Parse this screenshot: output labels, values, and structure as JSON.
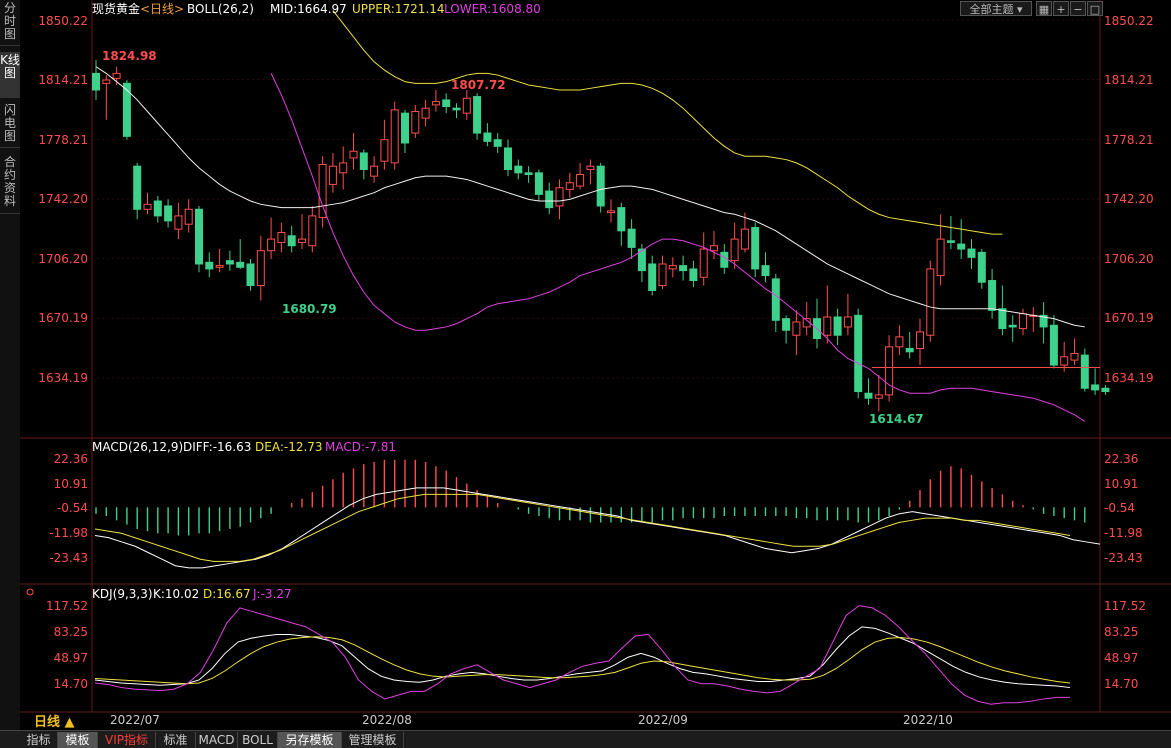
{
  "sidebar": {
    "tabs": [
      {
        "label": "分时图",
        "active": false
      },
      {
        "label": "K线图",
        "active": true
      },
      {
        "label": "闪电图",
        "active": false
      },
      {
        "label": "合约资料",
        "active": false
      }
    ]
  },
  "header": {
    "title": "现货黄金",
    "period": "<日线>",
    "boll": "BOLL(26,2)",
    "mid": "MID:1664.97",
    "upper": "UPPER:1721.14",
    "lower": "LOWER:1608.80",
    "theme_select": "全部主题",
    "icons": [
      "grid-icon",
      "zoom-in-icon",
      "zoom-out-icon",
      "settings-icon"
    ]
  },
  "colors": {
    "up": "#ff4d4d",
    "down": "#3ed18c",
    "upper": "#f0e040",
    "lower": "#e040e0",
    "mid": "#f0f0f0",
    "cross": "#ff4d4d"
  },
  "main_axis": {
    "ticks": [
      "1850.22",
      "1814.21",
      "1778.21",
      "1742.20",
      "1706.20",
      "1670.19",
      "1634.19"
    ],
    "marker_price": 1640.5
  },
  "annotations": {
    "high_1": "1824.98",
    "high_2": "1807.72",
    "low_1": "1680.79",
    "low_2": "1614.67"
  },
  "macd": {
    "title": "MACD(26,12,9)",
    "diff": "DIFF:-16.63",
    "dea": "DEA:-12.73",
    "macd": "MACD:-7.81",
    "ticks": [
      "22.36",
      "10.91",
      "-0.54",
      "-11.98",
      "-23.43"
    ]
  },
  "kdj": {
    "title": "KDJ(9,3,3)",
    "k": "K:10.02",
    "d": "D:16.67",
    "j": "J:-3.27",
    "ticks": [
      "117.52",
      "83.25",
      "48.97",
      "14.70"
    ]
  },
  "x_axis": {
    "labels": [
      "2022/07",
      "2022/08",
      "2022/09",
      "2022/10"
    ],
    "period_button": "日线 ▲"
  },
  "bottom_tabs": [
    {
      "label": "指标",
      "active": false,
      "vip": false
    },
    {
      "label": "模板",
      "active": true,
      "vip": false
    },
    {
      "label": "VIP指标",
      "active": false,
      "vip": true
    },
    {
      "label": "标准",
      "active": false,
      "vip": false
    },
    {
      "label": "MACD",
      "active": false,
      "vip": false
    },
    {
      "label": "BOLL",
      "active": false,
      "vip": false
    },
    {
      "label": "另存模板",
      "active": true,
      "vip": false
    },
    {
      "label": "管理模板",
      "active": false,
      "vip": false
    }
  ],
  "chart_data": {
    "type": "candlestick",
    "series_candles": [
      [
        1818,
        1808,
        1826,
        1802
      ],
      [
        1812,
        1814,
        1817,
        1790
      ],
      [
        1815,
        1818,
        1822,
        1811
      ],
      [
        1812,
        1780,
        1814,
        1778
      ],
      [
        1762,
        1736,
        1764,
        1730
      ],
      [
        1736,
        1739,
        1746,
        1733
      ],
      [
        1741,
        1732,
        1744,
        1728
      ],
      [
        1738,
        1729,
        1742,
        1725
      ],
      [
        1724,
        1732,
        1740,
        1718
      ],
      [
        1727,
        1736,
        1742,
        1722
      ],
      [
        1736,
        1703,
        1738,
        1698
      ],
      [
        1704,
        1700,
        1710,
        1695
      ],
      [
        1701,
        1702,
        1712,
        1698
      ],
      [
        1705,
        1703,
        1711,
        1699
      ],
      [
        1704,
        1701,
        1718,
        1700
      ],
      [
        1703,
        1690,
        1706,
        1687
      ],
      [
        1690,
        1711,
        1720,
        1681
      ],
      [
        1711,
        1718,
        1731,
        1706
      ],
      [
        1716,
        1722,
        1728,
        1710
      ],
      [
        1720,
        1714,
        1726,
        1710
      ],
      [
        1716,
        1718,
        1733,
        1712
      ],
      [
        1714,
        1732,
        1738,
        1710
      ],
      [
        1731,
        1763,
        1768,
        1725
      ],
      [
        1751,
        1762,
        1770,
        1746
      ],
      [
        1758,
        1764,
        1774,
        1748
      ],
      [
        1767,
        1771,
        1782,
        1760
      ],
      [
        1770,
        1760,
        1772,
        1754
      ],
      [
        1756,
        1762,
        1768,
        1752
      ],
      [
        1765,
        1778,
        1790,
        1760
      ],
      [
        1764,
        1796,
        1801,
        1760
      ],
      [
        1794,
        1776,
        1796,
        1770
      ],
      [
        1782,
        1795,
        1799,
        1779
      ],
      [
        1791,
        1797,
        1802,
        1786
      ],
      [
        1799,
        1801,
        1808,
        1795
      ],
      [
        1802,
        1798,
        1806,
        1794
      ],
      [
        1797,
        1796,
        1800,
        1791
      ],
      [
        1794,
        1803,
        1808,
        1790
      ],
      [
        1804,
        1782,
        1806,
        1778
      ],
      [
        1782,
        1777,
        1788,
        1774
      ],
      [
        1778,
        1774,
        1782,
        1770
      ],
      [
        1773,
        1760,
        1778,
        1756
      ],
      [
        1762,
        1758,
        1766,
        1754
      ],
      [
        1758,
        1757,
        1762,
        1752
      ],
      [
        1758,
        1745,
        1760,
        1741
      ],
      [
        1747,
        1737,
        1752,
        1733
      ],
      [
        1738,
        1749,
        1754,
        1730
      ],
      [
        1748,
        1752,
        1758,
        1743
      ],
      [
        1750,
        1757,
        1764,
        1748
      ],
      [
        1760,
        1762,
        1766,
        1751
      ],
      [
        1762,
        1738,
        1764,
        1734
      ],
      [
        1734,
        1735,
        1742,
        1728
      ],
      [
        1737,
        1723,
        1740,
        1714
      ],
      [
        1724,
        1713,
        1730,
        1706
      ],
      [
        1712,
        1699,
        1715,
        1692
      ],
      [
        1703,
        1687,
        1708,
        1684
      ],
      [
        1690,
        1703,
        1708,
        1688
      ],
      [
        1700,
        1702,
        1707,
        1695
      ],
      [
        1702,
        1699,
        1708,
        1693
      ],
      [
        1700,
        1693,
        1705,
        1689
      ],
      [
        1695,
        1712,
        1722,
        1690
      ],
      [
        1711,
        1714,
        1723,
        1706
      ],
      [
        1710,
        1701,
        1715,
        1697
      ],
      [
        1705,
        1718,
        1728,
        1700
      ],
      [
        1712,
        1724,
        1734,
        1710
      ],
      [
        1725,
        1700,
        1728,
        1695
      ],
      [
        1702,
        1696,
        1710,
        1692
      ],
      [
        1694,
        1669,
        1697,
        1662
      ],
      [
        1670,
        1663,
        1672,
        1655
      ],
      [
        1660,
        1668,
        1675,
        1648
      ],
      [
        1665,
        1670,
        1680,
        1660
      ],
      [
        1670,
        1658,
        1682,
        1652
      ],
      [
        1660,
        1671,
        1690,
        1655
      ],
      [
        1671,
        1660,
        1676,
        1654
      ],
      [
        1665,
        1671,
        1685,
        1660
      ],
      [
        1672,
        1626,
        1676,
        1622
      ],
      [
        1625,
        1622,
        1634,
        1618
      ],
      [
        1622,
        1624,
        1636,
        1614
      ],
      [
        1624,
        1653,
        1660,
        1620
      ],
      [
        1653,
        1659,
        1666,
        1648
      ],
      [
        1652,
        1650,
        1662,
        1646
      ],
      [
        1652,
        1662,
        1670,
        1642
      ],
      [
        1660,
        1700,
        1705,
        1656
      ],
      [
        1696,
        1718,
        1733,
        1690
      ],
      [
        1717,
        1716,
        1732,
        1712
      ],
      [
        1715,
        1712,
        1730,
        1706
      ],
      [
        1712,
        1707,
        1718,
        1700
      ],
      [
        1710,
        1692,
        1712,
        1688
      ],
      [
        1693,
        1675,
        1700,
        1670
      ],
      [
        1676,
        1664,
        1690,
        1660
      ],
      [
        1666,
        1665,
        1672,
        1656
      ],
      [
        1664,
        1673,
        1676,
        1660
      ],
      [
        1672,
        1672,
        1677,
        1662
      ],
      [
        1672,
        1665,
        1680,
        1655
      ],
      [
        1666,
        1642,
        1672,
        1640
      ],
      [
        1642,
        1647,
        1656,
        1638
      ],
      [
        1645,
        1649,
        1658,
        1642
      ],
      [
        1648,
        1628,
        1652,
        1626
      ],
      [
        1630,
        1627,
        1640,
        1624
      ],
      [
        1628,
        1626,
        1630,
        1624
      ]
    ],
    "mid_series": [
      1822,
      1818,
      1813,
      1808,
      1802,
      1795,
      1788,
      1781,
      1774,
      1767,
      1761,
      1756,
      1751,
      1747,
      1744,
      1741,
      1739,
      1738,
      1737,
      1737,
      1737,
      1737,
      1738,
      1739,
      1740,
      1742,
      1744,
      1746,
      1749,
      1751,
      1753,
      1755,
      1756,
      1756,
      1756,
      1755,
      1754,
      1752,
      1750,
      1748,
      1746,
      1744,
      1742,
      1741,
      1741,
      1741,
      1742,
      1744,
      1746,
      1748,
      1749,
      1750,
      1750,
      1749,
      1748,
      1746,
      1744,
      1742,
      1740,
      1738,
      1736,
      1734,
      1733,
      1731,
      1729,
      1726,
      1723,
      1719,
      1715,
      1711,
      1707,
      1703,
      1700,
      1697,
      1694,
      1691,
      1688,
      1685,
      1683,
      1681,
      1679,
      1677,
      1676,
      1676,
      1676,
      1676,
      1676,
      1676,
      1675,
      1674,
      1673,
      1672,
      1671,
      1670,
      1668,
      1666,
      1665
    ],
    "upper_series": [
      null,
      null,
      null,
      null,
      null,
      null,
      null,
      null,
      null,
      null,
      null,
      null,
      null,
      null,
      null,
      null,
      null,
      null,
      null,
      null,
      null,
      null,
      null,
      1856,
      1848,
      1840,
      1832,
      1825,
      1820,
      1816,
      1813,
      1812,
      1812,
      1812,
      1813,
      1815,
      1817,
      1818,
      1818,
      1817,
      1815,
      1813,
      1811,
      1810,
      1809,
      1808,
      1808,
      1808,
      1809,
      1810,
      1811,
      1812,
      1812,
      1811,
      1809,
      1806,
      1802,
      1797,
      1791,
      1785,
      1779,
      1774,
      1770,
      1768,
      1768,
      1768,
      1767,
      1766,
      1764,
      1761,
      1757,
      1753,
      1749,
      1744,
      1740,
      1736,
      1733,
      1731,
      1730,
      1729,
      1728,
      1727,
      1726,
      1725,
      1724,
      1723,
      1722,
      1721,
      1721
    ],
    "lower_series": [
      1818,
      1805,
      1790,
      1773,
      1756,
      1738,
      1722,
      1708,
      1696,
      1686,
      1678,
      1673,
      1668,
      1665,
      1663,
      1663,
      1664,
      1665,
      1667,
      1670,
      1673,
      1677,
      1679,
      1680,
      1681,
      1682,
      1684,
      1686,
      1689,
      1692,
      1696,
      1698,
      1700,
      1702,
      1704,
      1707,
      1711,
      1715,
      1718,
      1718,
      1717,
      1715,
      1713,
      1710,
      1707,
      1703,
      1698,
      1693,
      1688,
      1684,
      1679,
      1674,
      1669,
      1664,
      1658,
      1651,
      1646,
      1643,
      1640,
      1635,
      1630,
      1627,
      1625,
      1625,
      1625,
      1627,
      1628,
      1628,
      1628,
      1627,
      1626,
      1625,
      1624,
      1623,
      1622,
      1620,
      1618,
      1615,
      1612,
      1608
    ],
    "macd_hist": [
      -3,
      -4,
      -6,
      -8,
      -10,
      -11,
      -12,
      -12,
      -13,
      -13,
      -12,
      -12,
      -11,
      -10,
      -9,
      -7,
      -5,
      -3,
      0,
      2,
      4,
      7,
      10,
      13,
      16,
      18,
      20,
      21,
      22,
      22,
      22,
      22,
      21,
      19,
      17,
      14,
      11,
      8,
      5,
      2,
      0,
      -1,
      -3,
      -4,
      -5,
      -6,
      -6,
      -6,
      -7,
      -7,
      -7,
      -7,
      -7,
      -7,
      -7,
      -6,
      -6,
      -5,
      -5,
      -5,
      -5,
      -4,
      -4,
      -4,
      -4,
      -4,
      -4,
      -4,
      -5,
      -5,
      -6,
      -6,
      -6,
      -6,
      -7,
      -7,
      -6,
      -4,
      -1,
      3,
      8,
      13,
      17,
      19,
      18,
      15,
      12,
      9,
      6,
      3,
      1,
      -1,
      -3,
      -4,
      -5,
      -6,
      -7
    ],
    "diff_series": [
      -13,
      -14,
      -16,
      -18,
      -21,
      -24,
      -27,
      -28,
      -28,
      -27,
      -26,
      -25,
      -24,
      -22,
      -19,
      -15,
      -11,
      -7,
      -3,
      1,
      4,
      6,
      7,
      8,
      9,
      9,
      9,
      8,
      7,
      6,
      5,
      4,
      3,
      2,
      1,
      0,
      -1,
      -2,
      -3,
      -4,
      -6,
      -7,
      -8,
      -9,
      -10,
      -11,
      -12,
      -13,
      -15,
      -17,
      -19,
      -20,
      -21,
      -20,
      -19,
      -17,
      -14,
      -11,
      -8,
      -5,
      -3,
      -2,
      -3,
      -4,
      -5,
      -6,
      -7,
      -8,
      -9,
      -10,
      -11,
      -12,
      -13,
      -15,
      -16,
      -17
    ],
    "dea_series": [
      -10,
      -11,
      -12,
      -14,
      -16,
      -18,
      -20,
      -22,
      -24,
      -25,
      -25,
      -25,
      -24,
      -22,
      -20,
      -17,
      -14,
      -11,
      -8,
      -5,
      -2,
      0,
      2,
      4,
      5,
      6,
      6,
      6,
      6,
      6,
      5,
      4,
      3,
      2,
      1,
      0,
      -1,
      -2,
      -3,
      -4,
      -5,
      -6,
      -7,
      -8,
      -9,
      -10,
      -11,
      -12,
      -13,
      -14,
      -15,
      -16,
      -17,
      -18,
      -18,
      -18,
      -17,
      -15,
      -13,
      -11,
      -9,
      -7,
      -6,
      -5,
      -5,
      -5,
      -6,
      -6,
      -7,
      -8,
      -9,
      -10,
      -11,
      -12,
      -13
    ],
    "k_series": [
      20,
      18,
      16,
      15,
      14,
      13,
      14,
      15,
      20,
      35,
      55,
      70,
      75,
      78,
      80,
      80,
      78,
      76,
      72,
      65,
      50,
      35,
      25,
      20,
      18,
      17,
      20,
      25,
      28,
      30,
      28,
      25,
      22,
      20,
      20,
      22,
      25,
      28,
      30,
      32,
      40,
      50,
      55,
      50,
      42,
      35,
      30,
      28,
      25,
      22,
      20,
      18,
      18,
      20,
      22,
      25,
      40,
      60,
      78,
      90,
      88,
      82,
      75,
      68,
      58,
      48,
      38,
      30,
      24,
      20,
      17,
      15,
      14,
      13,
      12,
      10
    ],
    "d_series": [
      22,
      21,
      20,
      19,
      18,
      17,
      16,
      15,
      16,
      22,
      32,
      44,
      55,
      64,
      70,
      74,
      76,
      77,
      76,
      73,
      66,
      57,
      48,
      40,
      33,
      28,
      25,
      24,
      25,
      26,
      27,
      27,
      26,
      25,
      24,
      23,
      23,
      24,
      25,
      27,
      30,
      36,
      42,
      45,
      44,
      41,
      38,
      35,
      32,
      29,
      26,
      23,
      21,
      20,
      20,
      21,
      26,
      35,
      47,
      60,
      70,
      75,
      76,
      74,
      70,
      64,
      57,
      50,
      43,
      37,
      32,
      28,
      24,
      21,
      18,
      16
    ],
    "j_series": [
      16,
      14,
      10,
      8,
      7,
      6,
      8,
      15,
      30,
      60,
      95,
      115,
      110,
      105,
      100,
      95,
      90,
      80,
      70,
      50,
      20,
      5,
      -5,
      0,
      5,
      5,
      15,
      28,
      35,
      40,
      30,
      20,
      15,
      10,
      15,
      20,
      30,
      38,
      42,
      45,
      62,
      78,
      80,
      60,
      38,
      20,
      15,
      15,
      12,
      8,
      5,
      3,
      5,
      15,
      25,
      35,
      70,
      105,
      118,
      115,
      105,
      90,
      72,
      55,
      35,
      15,
      0,
      -8,
      -12,
      -10,
      -10,
      -8,
      -5,
      -3,
      -3
    ]
  }
}
